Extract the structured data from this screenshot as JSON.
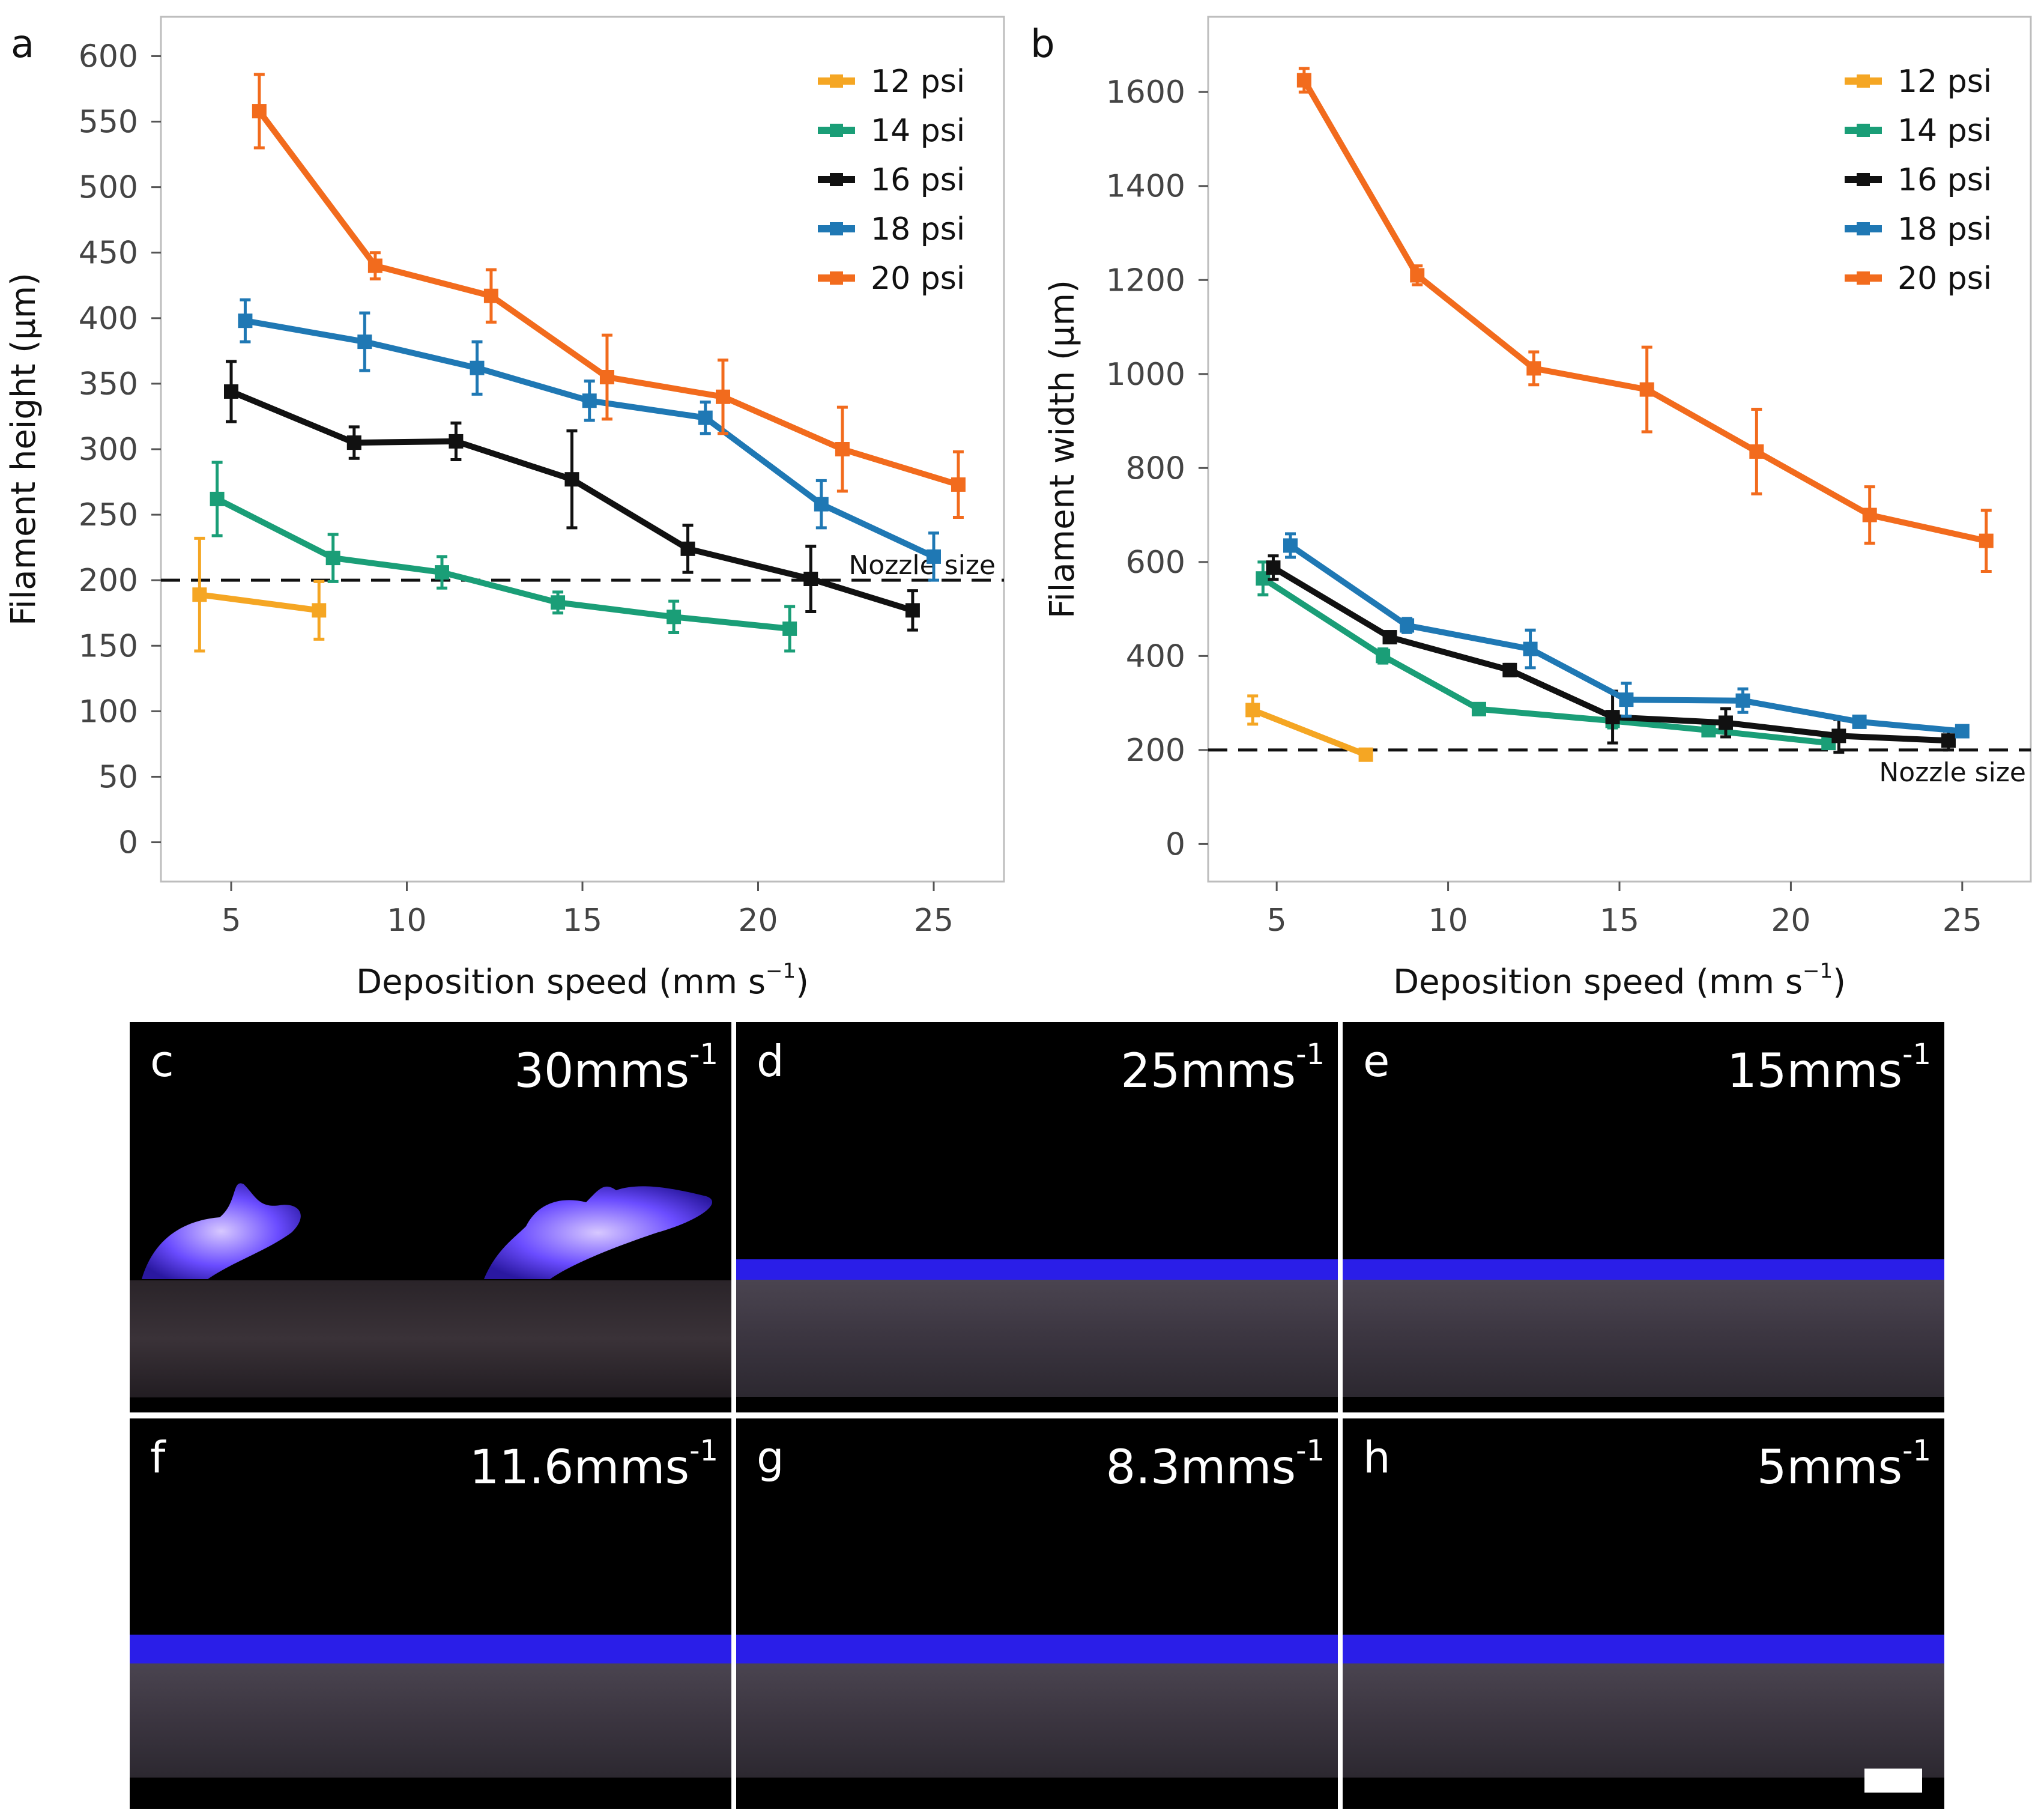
{
  "panel_letters": [
    "a",
    "b",
    "c",
    "d",
    "e",
    "f",
    "g",
    "h"
  ],
  "colors": {
    "12 psi": "#f5a623",
    "14 psi": "#1a9e77",
    "16 psi": "#111111",
    "18 psi": "#1f78b4",
    "20 psi": "#f26b1d",
    "photo_filament": "#2a1ee8",
    "photo_background": "#000000"
  },
  "chart_data": [
    {
      "id": "a",
      "type": "line",
      "title": "",
      "xlabel": "Deposition speed (mm s",
      "xlabel_sup": "−1",
      "xlabel_close": ")",
      "ylabel": "Filament height (µm)",
      "xlim": [
        3,
        27
      ],
      "ylim": [
        -30,
        630
      ],
      "xticks": [
        5,
        10,
        15,
        20,
        25
      ],
      "yticks": [
        0,
        50,
        100,
        150,
        200,
        250,
        300,
        350,
        400,
        450,
        500,
        550,
        600
      ],
      "grid": false,
      "legend_position": "top-right",
      "reference_line": {
        "y": 200,
        "label": "Nozzle size"
      },
      "series": [
        {
          "name": "12 psi",
          "x": [
            4.1,
            7.5
          ],
          "y": [
            189,
            177
          ],
          "err": [
            43,
            22
          ]
        },
        {
          "name": "14 psi",
          "x": [
            4.6,
            7.9,
            11.0,
            14.3,
            17.6,
            20.9
          ],
          "y": [
            262,
            217,
            206,
            183,
            172,
            163
          ],
          "err": [
            28,
            18,
            12,
            8,
            12,
            17
          ]
        },
        {
          "name": "16 psi",
          "x": [
            5.0,
            8.5,
            11.4,
            14.7,
            18.0,
            21.5,
            24.4
          ],
          "y": [
            344,
            305,
            306,
            277,
            224,
            201,
            177
          ],
          "err": [
            23,
            12,
            14,
            37,
            18,
            25,
            15
          ]
        },
        {
          "name": "18 psi",
          "x": [
            5.4,
            8.8,
            12.0,
            15.2,
            18.5,
            21.8,
            25.0
          ],
          "y": [
            398,
            382,
            362,
            337,
            324,
            258,
            218
          ],
          "err": [
            16,
            22,
            20,
            15,
            12,
            18,
            18
          ]
        },
        {
          "name": "20 psi",
          "x": [
            5.8,
            9.1,
            12.4,
            15.7,
            19.0,
            22.4,
            25.7
          ],
          "y": [
            558,
            440,
            417,
            355,
            340,
            300,
            273
          ],
          "err": [
            28,
            10,
            20,
            32,
            28,
            32,
            25
          ]
        }
      ]
    },
    {
      "id": "b",
      "type": "line",
      "title": "",
      "xlabel": "Deposition speed (mm s",
      "xlabel_sup": "−1",
      "xlabel_close": ")",
      "ylabel": "Filament width (µm)",
      "xlim": [
        3,
        27
      ],
      "ylim": [
        -80,
        1760
      ],
      "xticks": [
        5,
        10,
        15,
        20,
        25
      ],
      "yticks": [
        0,
        200,
        400,
        600,
        800,
        1000,
        1200,
        1400,
        1600
      ],
      "grid": false,
      "legend_position": "top-right",
      "reference_line": {
        "y": 200,
        "label": "Nozzle size"
      },
      "series": [
        {
          "name": "12 psi",
          "x": [
            4.3,
            7.6
          ],
          "y": [
            285,
            190
          ],
          "err": [
            30,
            10
          ]
        },
        {
          "name": "14 psi",
          "x": [
            4.6,
            8.1,
            10.9,
            14.8,
            17.6,
            21.1
          ],
          "y": [
            565,
            400,
            287,
            262,
            242,
            215
          ],
          "err": [
            35,
            15,
            10,
            15,
            10,
            8
          ]
        },
        {
          "name": "16 psi",
          "x": [
            4.9,
            8.3,
            11.8,
            14.8,
            18.1,
            21.4,
            24.6
          ],
          "y": [
            588,
            440,
            370,
            270,
            258,
            230,
            220
          ],
          "err": [
            25,
            10,
            12,
            55,
            30,
            35,
            20
          ]
        },
        {
          "name": "18 psi",
          "x": [
            5.4,
            8.8,
            12.4,
            15.2,
            18.6,
            22.0,
            25.0
          ],
          "y": [
            635,
            465,
            415,
            307,
            305,
            260,
            240
          ],
          "err": [
            25,
            15,
            40,
            35,
            25,
            10,
            10
          ]
        },
        {
          "name": "20 psi",
          "x": [
            5.8,
            9.1,
            12.5,
            15.8,
            19.0,
            22.3,
            25.7
          ],
          "y": [
            1625,
            1210,
            1012,
            967,
            835,
            700,
            645
          ],
          "err": [
            25,
            20,
            35,
            90,
            90,
            60,
            65
          ]
        }
      ]
    }
  ],
  "photos": [
    {
      "letter": "c",
      "speed": "30mms",
      "sup": "-1",
      "filament": false
    },
    {
      "letter": "d",
      "speed": "25mms",
      "sup": "-1",
      "filament": true
    },
    {
      "letter": "e",
      "speed": "15mms",
      "sup": "-1",
      "filament": true
    },
    {
      "letter": "f",
      "speed": "11.6mms",
      "sup": "-1",
      "filament": true
    },
    {
      "letter": "g",
      "speed": "8.3mms",
      "sup": "-1",
      "filament": true
    },
    {
      "letter": "h",
      "speed": "5mms",
      "sup": "-1",
      "filament": true
    }
  ]
}
